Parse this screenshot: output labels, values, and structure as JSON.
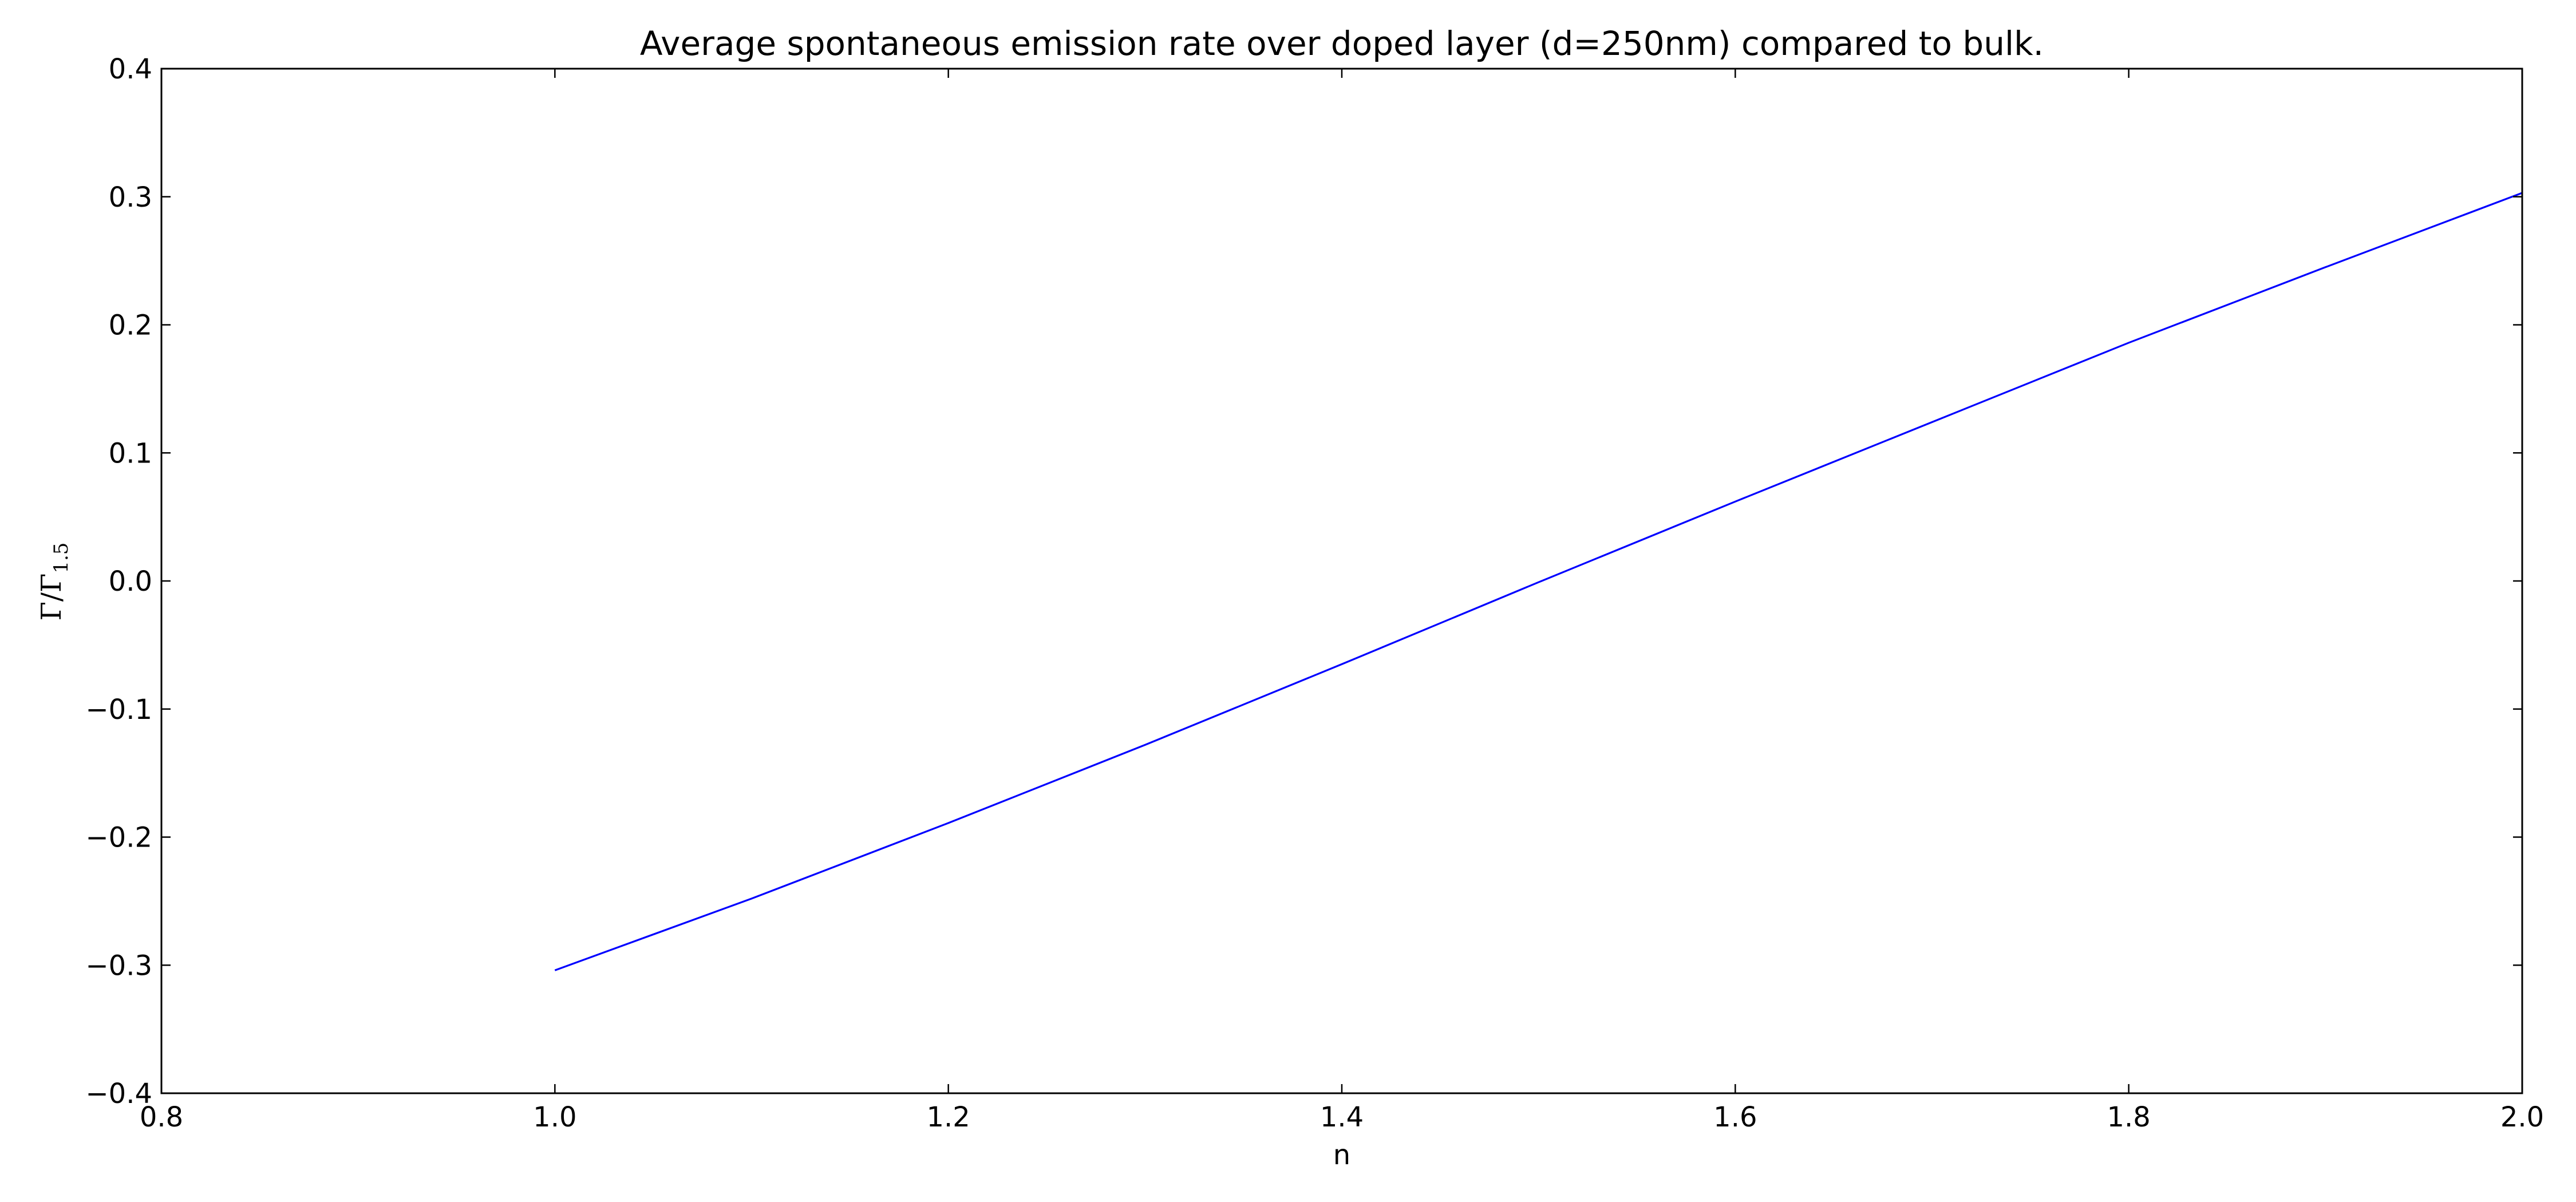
{
  "chart_data": {
    "type": "line",
    "title": "Average spontaneous emission rate over doped layer (d=250nm) compared to bulk.",
    "xlabel": "n",
    "ylabel": "Γ/Γ",
    "ylabel_subscript": "1.5",
    "xlim": [
      0.8,
      2.0
    ],
    "ylim": [
      -0.4,
      0.4
    ],
    "x_ticks": [
      0.8,
      1.0,
      1.2,
      1.4,
      1.6,
      1.8,
      2.0
    ],
    "x_tick_labels": [
      "0.8",
      "1.0",
      "1.2",
      "1.4",
      "1.6",
      "1.8",
      "2.0"
    ],
    "y_ticks": [
      -0.4,
      -0.3,
      -0.2,
      -0.1,
      0.0,
      0.1,
      0.2,
      0.3,
      0.4
    ],
    "y_tick_labels": [
      "−0.4",
      "−0.3",
      "−0.2",
      "−0.1",
      "0.0",
      "0.1",
      "0.2",
      "0.3",
      "0.4"
    ],
    "grid": false,
    "series": [
      {
        "color": "#0000ff",
        "x": [
          1.0,
          1.1,
          1.2,
          1.3,
          1.4,
          1.5,
          1.6,
          1.7,
          1.8,
          1.9,
          2.0
        ],
        "y": [
          -0.304,
          -0.248,
          -0.189,
          -0.128,
          -0.065,
          -0.001,
          0.062,
          0.124,
          0.186,
          0.245,
          0.303
        ]
      }
    ]
  }
}
